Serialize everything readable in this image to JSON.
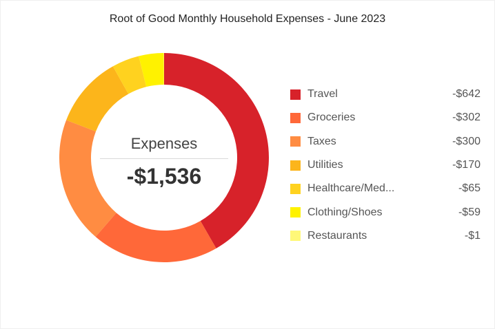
{
  "chart_data": {
    "type": "pie",
    "title": "Root of Good Monthly Household Expenses - June 2023",
    "center_label": "Expenses",
    "center_total": "-$1,536",
    "categories": [
      "Travel",
      "Groceries",
      "Taxes",
      "Utilities",
      "Healthcare/Med...",
      "Clothing/Shoes",
      "Restaurants"
    ],
    "values": [
      642,
      302,
      300,
      170,
      65,
      59,
      1
    ],
    "value_labels": [
      "-$642",
      "-$302",
      "-$300",
      "-$170",
      "-$65",
      "-$59",
      "-$1"
    ],
    "colors": [
      "#d7222a",
      "#ff6839",
      "#ff8c42",
      "#fcb51b",
      "#ffd21f",
      "#fff200",
      "#fff878"
    ],
    "legend_position": "right"
  }
}
